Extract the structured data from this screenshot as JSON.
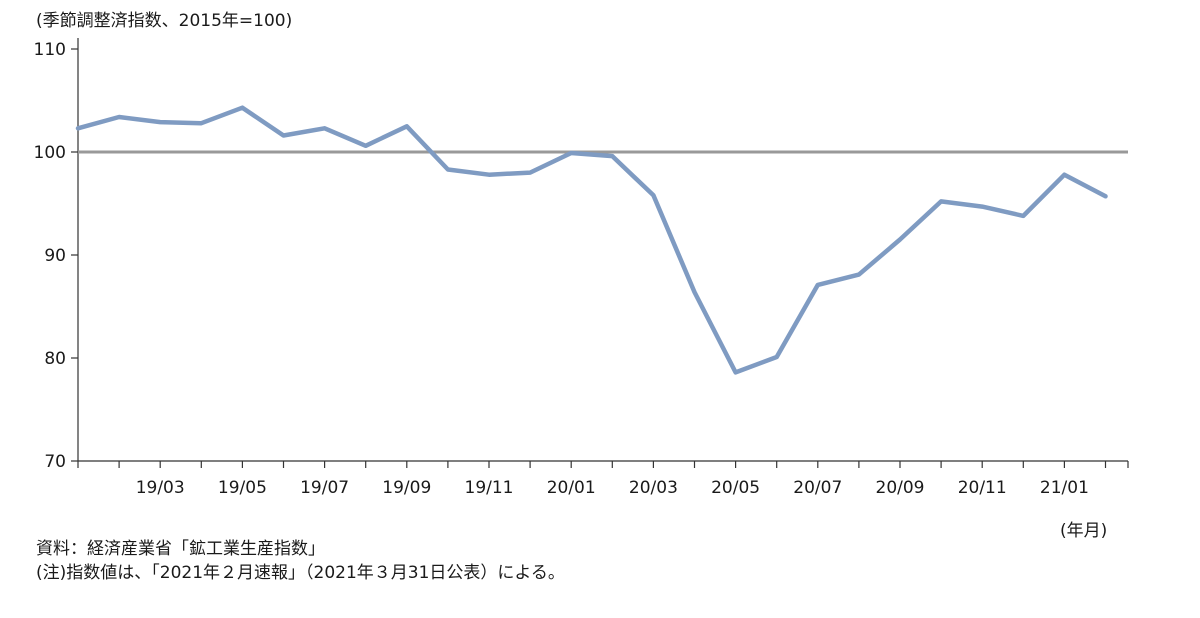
{
  "chart_data": {
    "type": "line",
    "ylabel": "(季節調整済指数、2015年=100)",
    "xunit": "(年月)",
    "ylim": [
      70,
      110
    ],
    "yticks": [
      70,
      80,
      90,
      100,
      110
    ],
    "reference_line": 100,
    "grid": false,
    "categories": [
      "19/01",
      "19/02",
      "19/03",
      "19/04",
      "19/05",
      "19/06",
      "19/07",
      "19/08",
      "19/09",
      "19/10",
      "19/11",
      "19/12",
      "20/01",
      "20/02",
      "20/03",
      "20/04",
      "20/05",
      "20/06",
      "20/07",
      "20/08",
      "20/09",
      "20/10",
      "20/11",
      "20/12",
      "21/01",
      "21/02"
    ],
    "tick_labels": [
      "",
      "",
      "19/03",
      "",
      "19/05",
      "",
      "19/07",
      "",
      "19/09",
      "",
      "19/11",
      "",
      "20/01",
      "",
      "20/03",
      "",
      "20/05",
      "",
      "20/07",
      "",
      "20/09",
      "",
      "20/11",
      "",
      "21/01",
      ""
    ],
    "series": [
      {
        "color": "#7f9bc2",
        "values": [
          102.3,
          103.4,
          102.9,
          102.8,
          104.3,
          101.6,
          102.3,
          100.6,
          102.5,
          98.3,
          97.8,
          98.0,
          99.9,
          99.6,
          95.8,
          86.4,
          78.6,
          80.1,
          87.1,
          88.1,
          91.5,
          95.2,
          94.7,
          93.8,
          97.8,
          95.7
        ]
      }
    ],
    "reference_color": "#999999",
    "axis_color": "#333333"
  },
  "notes": {
    "source": "資料：経済産業省「鉱工業生産指数」",
    "note": "(注)指数値は、「2021年２月速報」（2021年３月31日公表）による。"
  }
}
